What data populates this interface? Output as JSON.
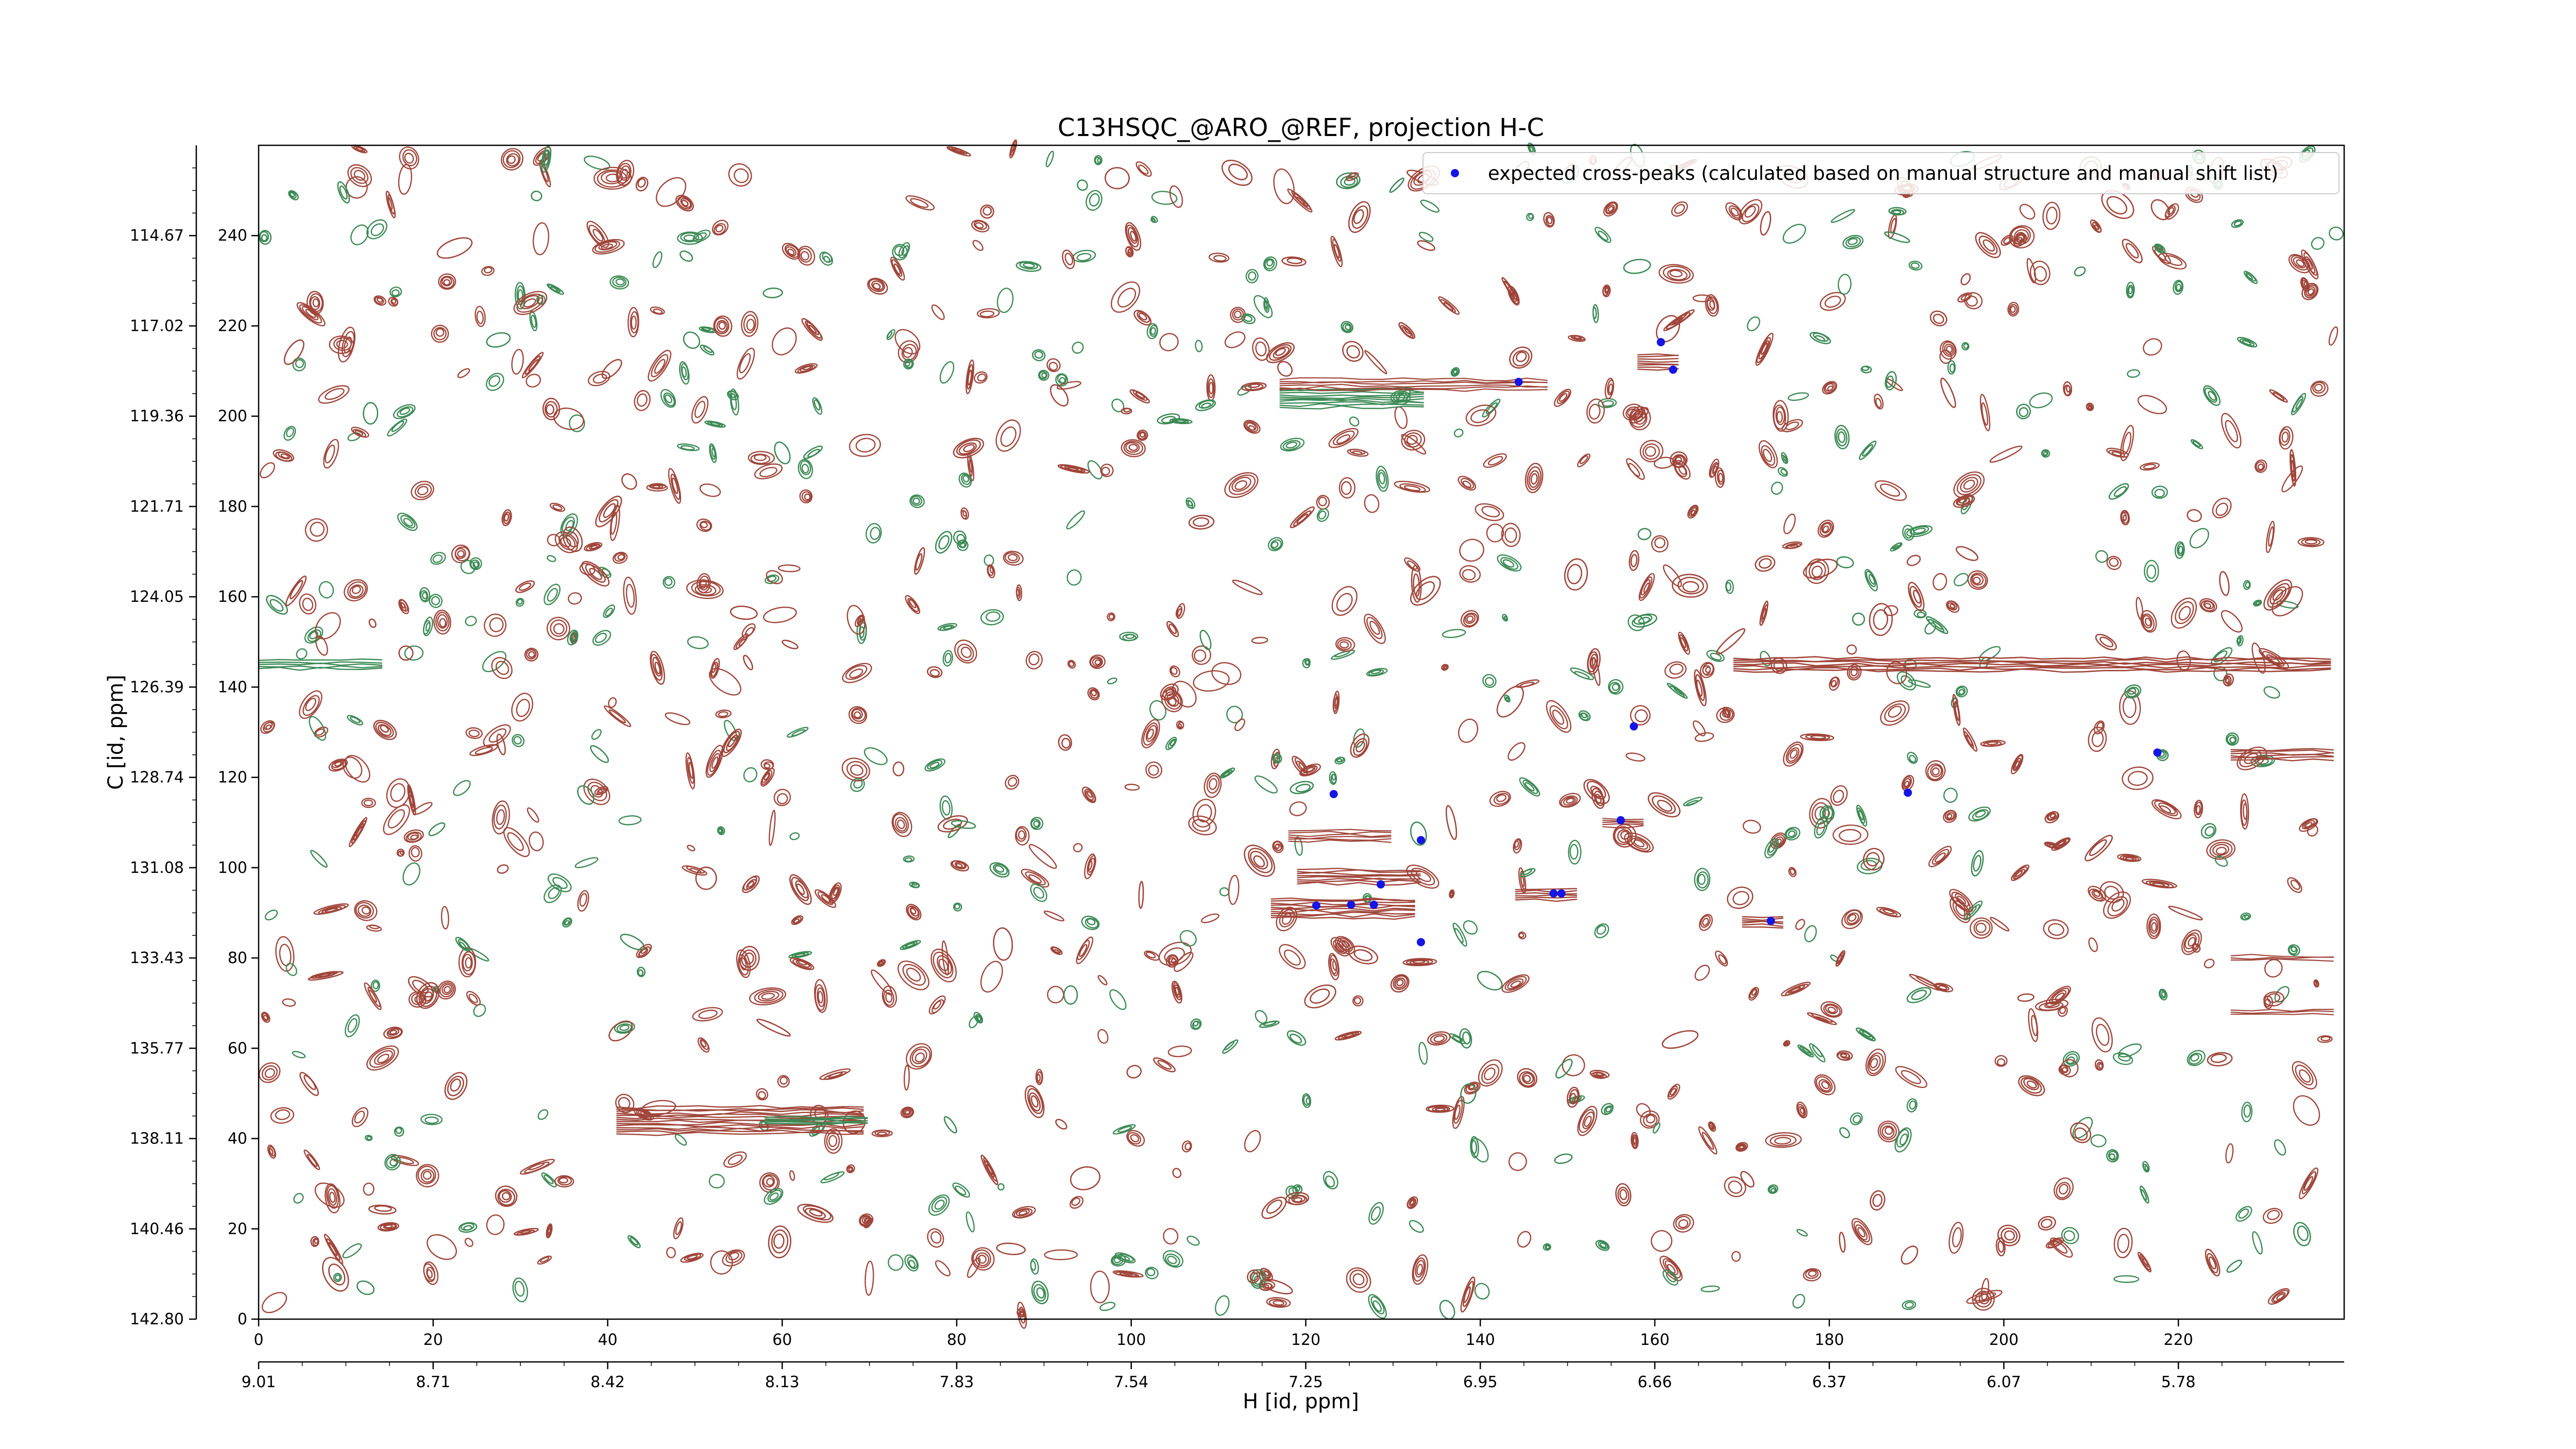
{
  "chart_data": {
    "type": "scatter",
    "title": "C13HSQC_@ARO_@REF, projection H-C",
    "xlabel": "H [id, ppm]",
    "ylabel": "C [id, ppm]",
    "xlim": [
      0,
      239
    ],
    "ylim": [
      0,
      260
    ],
    "x_ticks": [
      0,
      20,
      40,
      60,
      80,
      100,
      120,
      140,
      160,
      180,
      200,
      220
    ],
    "y_ticks": [
      0,
      20,
      40,
      60,
      80,
      100,
      120,
      140,
      160,
      180,
      200,
      220,
      240
    ],
    "y_ppm_ticks": [
      "142.80",
      "140.46",
      "138.11",
      "135.77",
      "133.43",
      "131.08",
      "128.74",
      "126.39",
      "124.05",
      "121.71",
      "119.36",
      "117.02",
      "114.67"
    ],
    "x_ppm_ticks": [
      "9.01",
      "8.71",
      "8.42",
      "8.13",
      "7.83",
      "7.54",
      "7.25",
      "6.95",
      "6.66",
      "6.37",
      "6.07",
      "5.78"
    ],
    "legend": {
      "placement": "top-right",
      "entries": [
        "expected cross-peaks (calculated based on manual structure and manual shift list)"
      ]
    },
    "colors": {
      "positive_contour": "#a0453a",
      "negative_contour": "#3c8a55",
      "peak_marker": "#1515e6"
    },
    "series": [
      {
        "name": "expected cross-peaks (calculated based on manual structure and manual shift list)",
        "points": [
          {
            "x": 123.2,
            "y": 116.3
          },
          {
            "x": 121.2,
            "y": 91.6
          },
          {
            "x": 125.2,
            "y": 91.8
          },
          {
            "x": 127.8,
            "y": 91.8
          },
          {
            "x": 128.6,
            "y": 96.3
          },
          {
            "x": 133.2,
            "y": 106.1
          },
          {
            "x": 133.2,
            "y": 83.5
          },
          {
            "x": 144.4,
            "y": 207.6
          },
          {
            "x": 148.4,
            "y": 94.3
          },
          {
            "x": 149.3,
            "y": 94.3
          },
          {
            "x": 156.1,
            "y": 110.5
          },
          {
            "x": 157.6,
            "y": 131.3
          },
          {
            "x": 160.7,
            "y": 216.4
          },
          {
            "x": 162.1,
            "y": 210.3
          },
          {
            "x": 173.3,
            "y": 88.2
          },
          {
            "x": 189.0,
            "y": 116.6
          },
          {
            "x": 217.6,
            "y": 125.5
          }
        ]
      }
    ]
  }
}
